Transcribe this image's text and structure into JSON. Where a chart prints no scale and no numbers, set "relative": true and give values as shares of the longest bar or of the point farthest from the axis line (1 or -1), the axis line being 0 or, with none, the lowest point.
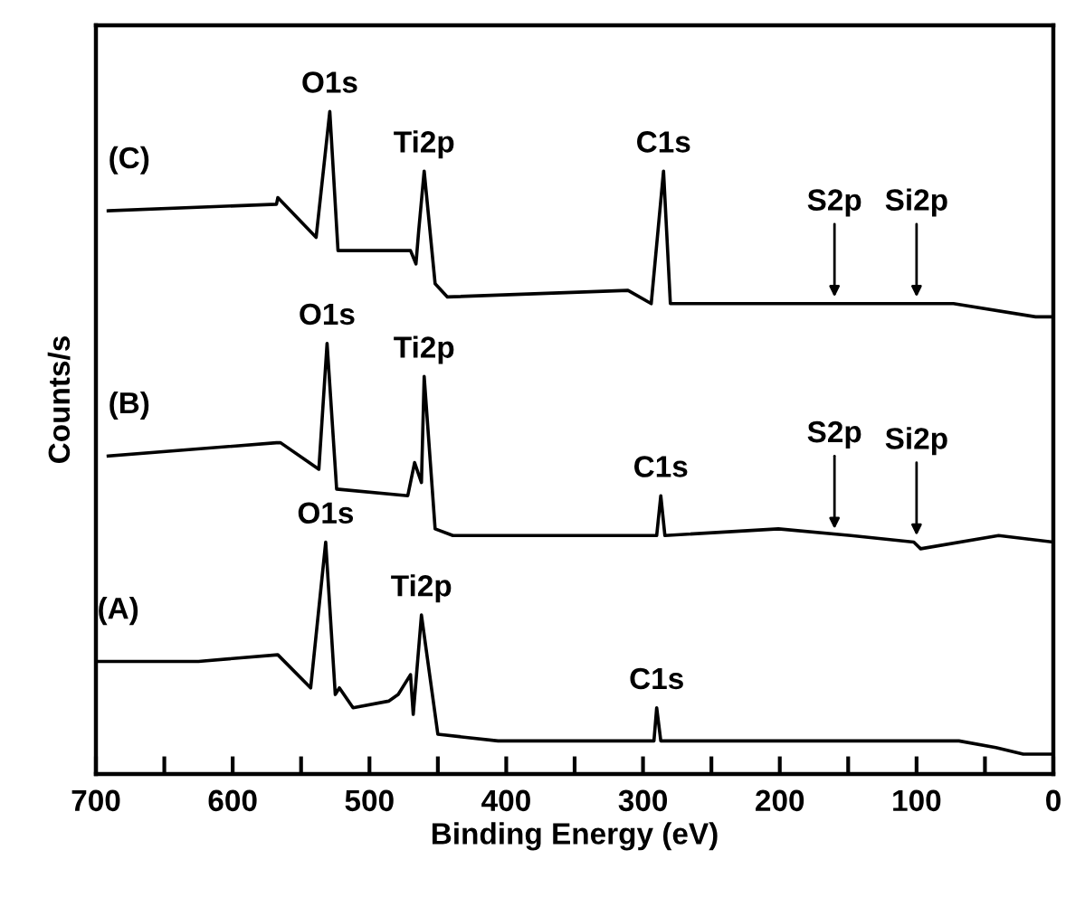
{
  "chart_data": {
    "type": "line",
    "relative": true,
    "xlabel": "Binding Energy (eV)",
    "ylabel": "Counts/s",
    "xlim": [
      700,
      0
    ],
    "xticks": [
      700,
      {
        "value": 650,
        "label": null
      },
      600,
      {
        "value": 550,
        "label": null
      },
      500,
      {
        "value": 450,
        "label": null
      },
      400,
      {
        "value": 350,
        "label": null
      },
      300,
      {
        "value": 250,
        "label": null
      },
      200,
      {
        "value": 150,
        "label": null
      },
      100,
      {
        "value": 50,
        "label": null
      },
      0
    ],
    "tick_labels": "x",
    "grid": false,
    "legend": false,
    "marker": "none",
    "line_style": "solid",
    "series": [
      {
        "name": "(C)",
        "color": "#000000",
        "x": [
          691,
          568,
          567,
          539,
          529,
          523,
          470,
          466,
          464,
          460,
          452,
          443,
          311,
          294,
          285,
          280,
          150,
          73,
          13,
          0
        ],
        "values": [
          0.85,
          0.86,
          0.87,
          0.81,
          1.0,
          0.79,
          0.79,
          0.77,
          0.82,
          0.91,
          0.74,
          0.72,
          0.73,
          0.71,
          0.91,
          0.71,
          0.71,
          0.71,
          0.69,
          0.69
        ]
      },
      {
        "name": "(B)",
        "color": "#000000",
        "x": [
          691,
          568,
          565,
          537,
          531,
          524,
          472,
          467,
          462,
          460,
          452,
          439,
          290,
          287,
          284,
          201,
          148,
          102,
          97,
          40,
          0
        ],
        "values": [
          0.48,
          0.5,
          0.5,
          0.46,
          0.65,
          0.43,
          0.42,
          0.47,
          0.44,
          0.6,
          0.37,
          0.36,
          0.36,
          0.42,
          0.36,
          0.37,
          0.36,
          0.35,
          0.34,
          0.36,
          0.35
        ]
      },
      {
        "name": "(A)",
        "color": "#000000",
        "x": [
          699,
          625,
          567,
          543,
          532,
          525,
          522,
          512,
          486,
          479,
          470,
          468,
          462,
          450,
          406,
          292,
          290,
          287,
          188,
          82,
          69,
          42,
          22,
          0
        ],
        "values": [
          0.17,
          0.17,
          0.18,
          0.13,
          0.35,
          0.12,
          0.13,
          0.1,
          0.11,
          0.12,
          0.15,
          0.09,
          0.24,
          0.06,
          0.05,
          0.05,
          0.1,
          0.05,
          0.05,
          0.05,
          0.05,
          0.04,
          0.03,
          0.03
        ]
      }
    ],
    "annotations": [
      {
        "text": "O1s",
        "x": 529,
        "y": 1.0
      },
      {
        "text": "Ti2p",
        "x": 460,
        "y": 0.91
      },
      {
        "text": "C1s",
        "x": 285,
        "y": 0.91
      },
      {
        "text": "S2p",
        "x": 160,
        "y": 0.71
      },
      {
        "text": "Si2p",
        "x": 100,
        "y": 0.71
      },
      {
        "text": "O1s",
        "x": 531,
        "y": 0.65
      },
      {
        "text": "Ti2p",
        "x": 460,
        "y": 0.6
      },
      {
        "text": "C1s",
        "x": 287,
        "y": 0.42
      },
      {
        "text": "S2p",
        "x": 160,
        "y": 0.36
      },
      {
        "text": "Si2p",
        "x": 100,
        "y": 0.35
      },
      {
        "text": "O1s",
        "x": 532,
        "y": 0.35
      },
      {
        "text": "Ti2p",
        "x": 462,
        "y": 0.24
      },
      {
        "text": "C1s",
        "x": 290,
        "y": 0.1
      }
    ]
  }
}
